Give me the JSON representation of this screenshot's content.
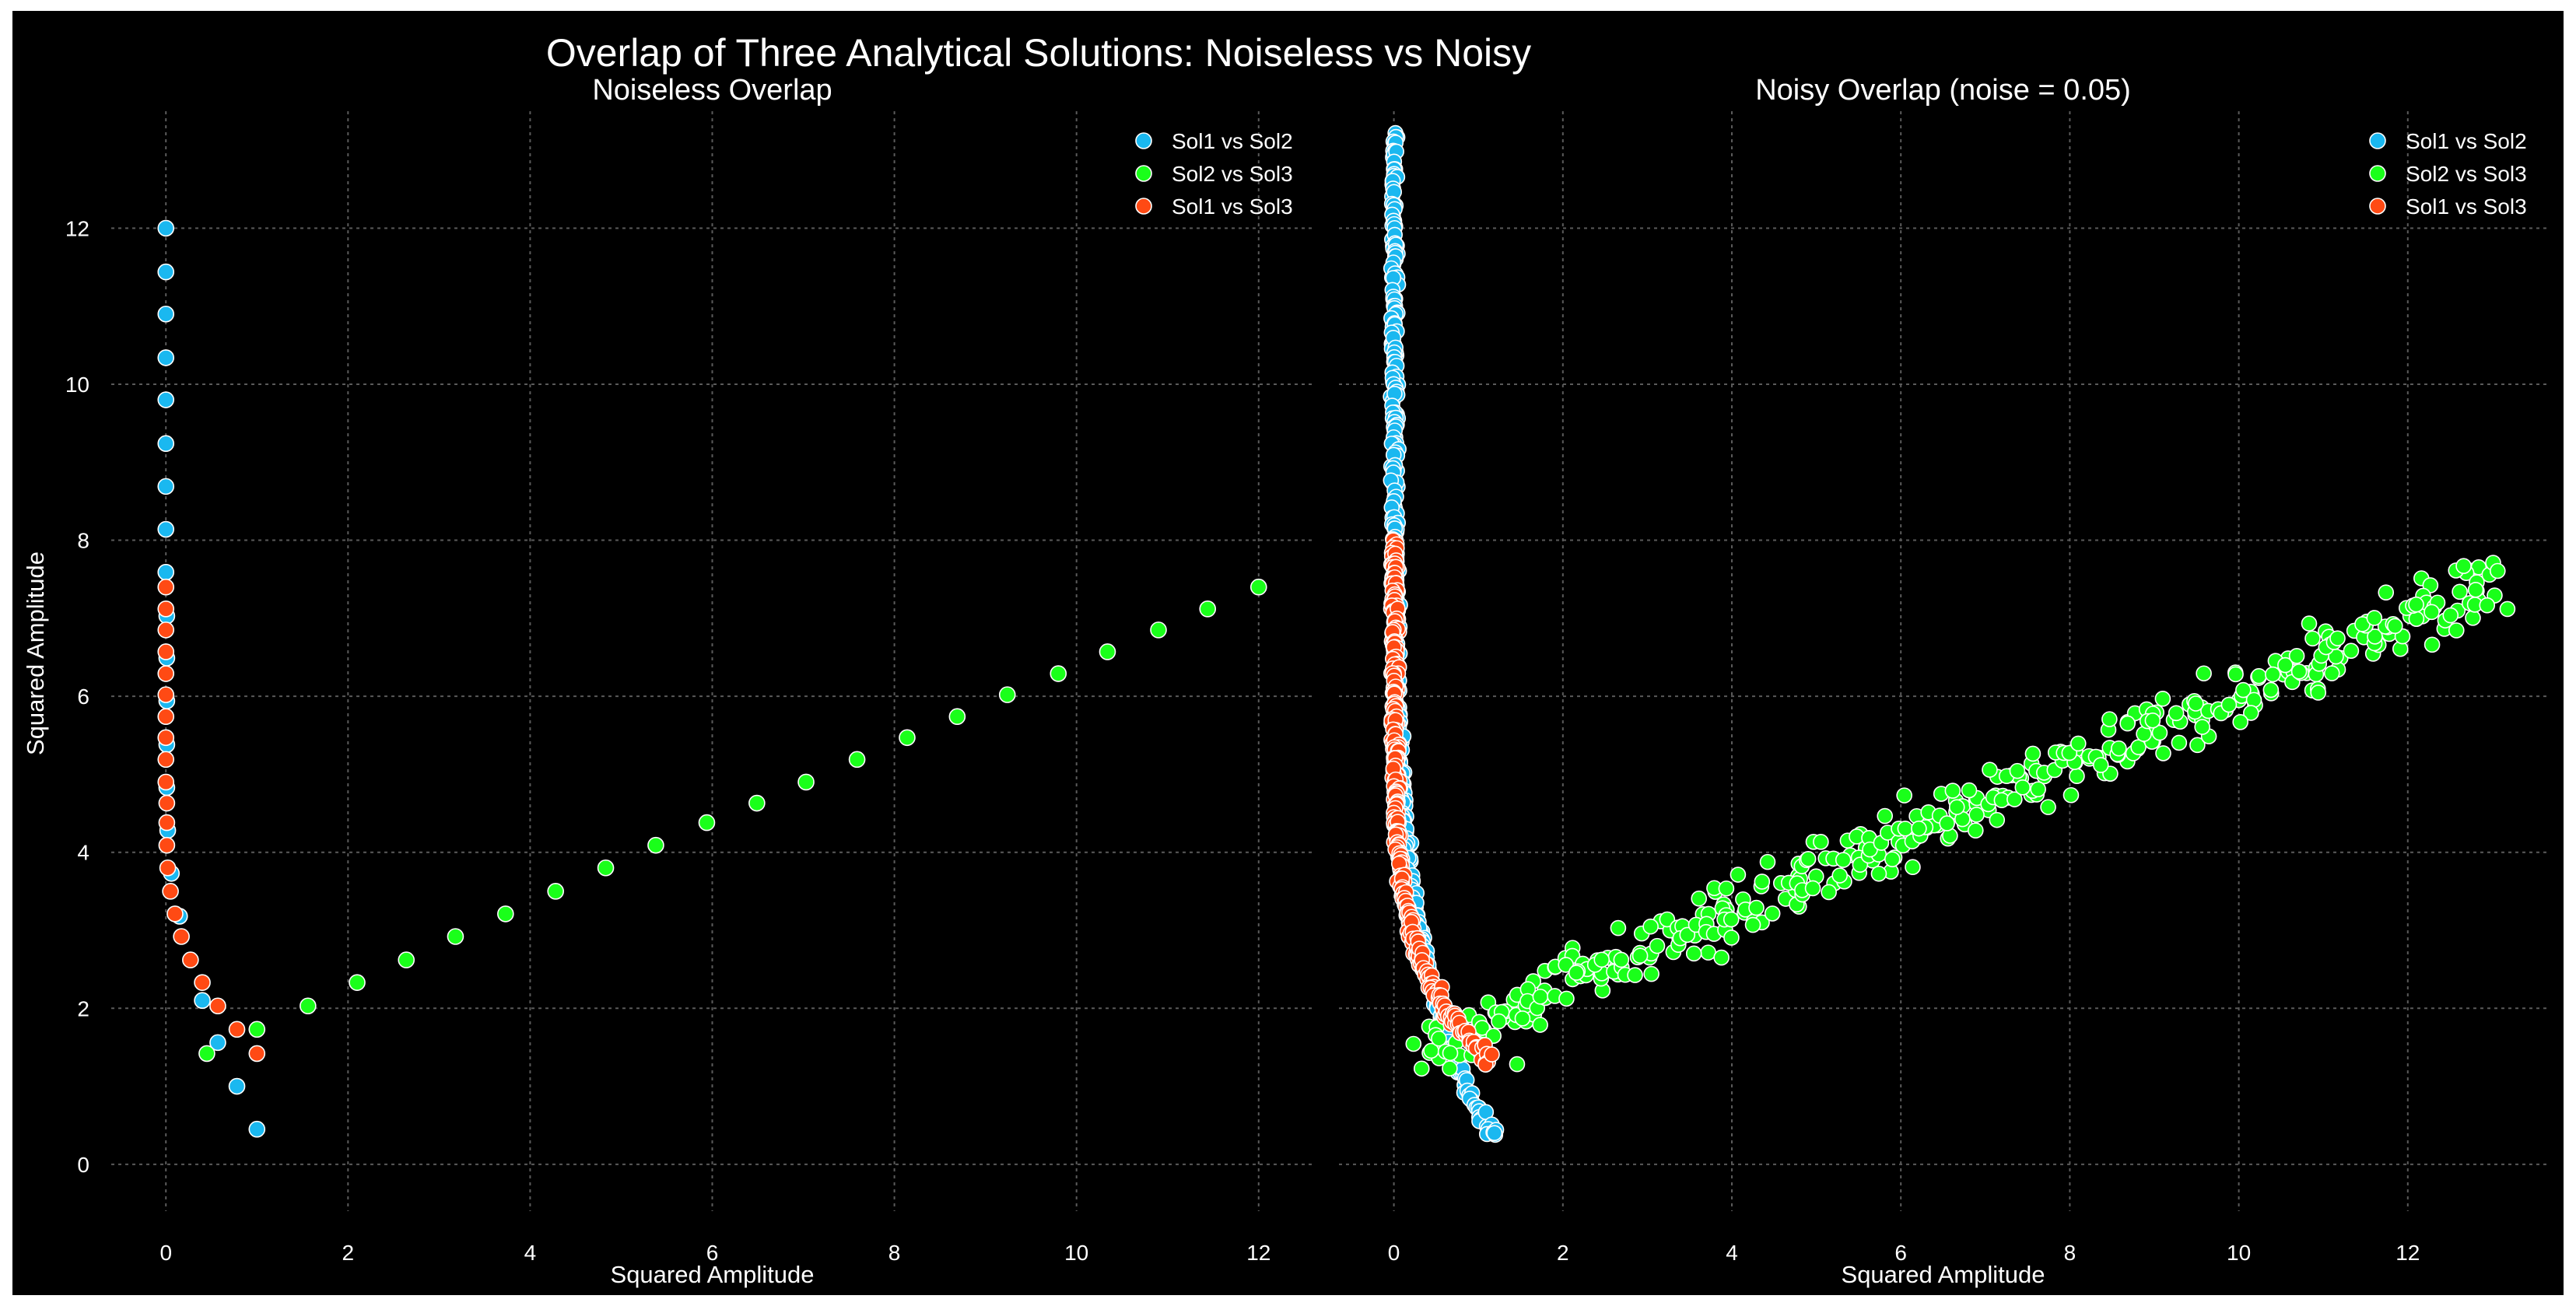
{
  "figure_title": "Overlap of Three Analytical Solutions: Noiseless vs Noisy",
  "colors": {
    "background": "#000000",
    "sol1_vs_sol2": "#1ab8f0",
    "sol2_vs_sol3": "#1aff1a",
    "sol1_vs_sol3": "#ff4a14",
    "marker_edge": "#ffffff",
    "grid": "#5a5a5a"
  },
  "chart_data": [
    {
      "type": "scatter",
      "title": "Noiseless Overlap",
      "xlabel": "Squared Amplitude",
      "ylabel": "Squared Amplitude",
      "xlim": [
        -0.6,
        12.6
      ],
      "ylim": [
        -0.6,
        13.5
      ],
      "xticks": [
        "0",
        "2",
        "4",
        "6",
        "8",
        "10",
        "12"
      ],
      "yticks": [
        "0",
        "2",
        "4",
        "6",
        "8",
        "10",
        "12"
      ],
      "grid": true,
      "legend_location": "top-right",
      "series": [
        {
          "name": "Sol1 vs Sol2",
          "points": [
            [
              0.0,
              12.0
            ],
            [
              0.0,
              11.44
            ],
            [
              0.0,
              10.9
            ],
            [
              0.0,
              10.34
            ],
            [
              0.0,
              9.8
            ],
            [
              0.0,
              9.24
            ],
            [
              0.0,
              8.69
            ],
            [
              0.0,
              8.14
            ],
            [
              0.0,
              7.59
            ],
            [
              0.01,
              7.03
            ],
            [
              0.01,
              6.49
            ],
            [
              0.01,
              5.94
            ],
            [
              0.01,
              5.38
            ],
            [
              0.01,
              4.83
            ],
            [
              0.02,
              4.28
            ],
            [
              0.06,
              3.73
            ],
            [
              0.15,
              3.18
            ],
            [
              0.4,
              2.1
            ],
            [
              0.57,
              1.56
            ],
            [
              0.78,
              1.0
            ],
            [
              1.0,
              0.45
            ]
          ]
        },
        {
          "name": "Sol2 vs Sol3",
          "points": [
            [
              0.45,
              1.42
            ],
            [
              1.0,
              1.73
            ],
            [
              1.56,
              2.03
            ],
            [
              2.1,
              2.33
            ],
            [
              2.64,
              2.62
            ],
            [
              3.18,
              2.92
            ],
            [
              3.73,
              3.21
            ],
            [
              4.28,
              3.5
            ],
            [
              4.83,
              3.8
            ],
            [
              5.38,
              4.09
            ],
            [
              5.94,
              4.38
            ],
            [
              6.49,
              4.63
            ],
            [
              7.03,
              4.9
            ],
            [
              7.59,
              5.19
            ],
            [
              8.14,
              5.47
            ],
            [
              8.69,
              5.74
            ],
            [
              9.24,
              6.02
            ],
            [
              9.8,
              6.29
            ],
            [
              10.34,
              6.57
            ],
            [
              10.9,
              6.85
            ],
            [
              11.44,
              7.12
            ],
            [
              12.0,
              7.4
            ]
          ]
        },
        {
          "name": "Sol1 vs Sol3",
          "points": [
            [
              0.0,
              7.4
            ],
            [
              0.0,
              7.12
            ],
            [
              0.0,
              6.85
            ],
            [
              0.0,
              6.57
            ],
            [
              0.0,
              6.29
            ],
            [
              0.0,
              6.02
            ],
            [
              0.0,
              5.74
            ],
            [
              0.0,
              5.47
            ],
            [
              0.0,
              5.19
            ],
            [
              0.0,
              4.9
            ],
            [
              0.01,
              4.63
            ],
            [
              0.01,
              4.38
            ],
            [
              0.01,
              4.09
            ],
            [
              0.02,
              3.8
            ],
            [
              0.05,
              3.5
            ],
            [
              0.1,
              3.21
            ],
            [
              0.17,
              2.92
            ],
            [
              0.27,
              2.62
            ],
            [
              0.4,
              2.33
            ],
            [
              0.57,
              2.03
            ],
            [
              0.78,
              1.73
            ],
            [
              1.0,
              1.42
            ]
          ]
        }
      ]
    },
    {
      "type": "scatter",
      "title": "Noisy Overlap (noise = 0.05)",
      "xlabel": "Squared Amplitude",
      "xlim": [
        -0.65,
        13.65
      ],
      "ylim": [
        -0.6,
        13.5
      ],
      "xticks": [
        "0",
        "2",
        "4",
        "6",
        "8",
        "10",
        "12"
      ],
      "yticks": [
        "0",
        "2",
        "4",
        "6",
        "8",
        "10",
        "12"
      ],
      "grid": true,
      "legend_location": "top-right",
      "note": "dense point clouds (~500 points per series) that follow the noiseless curves with Gaussian jitter",
      "series": [
        {
          "name": "Sol1 vs Sol2",
          "trend": "x ≈ 0 for y from 13.2 down to 4, then curving out to x ≈ 1.2 at y ≈ 0.3",
          "extent": {
            "x": [
              -0.05,
              1.25
            ],
            "y": [
              0.28,
              13.2
            ]
          }
        },
        {
          "name": "Sol2 vs Sol3",
          "trend": "approximately linear from (0.3, 1.3) to (13.1, 7.3)",
          "extent": {
            "x": [
              0.25,
              13.15
            ],
            "y": [
              1.2,
              8.0
            ]
          }
        },
        {
          "name": "Sol1 vs Sol3",
          "trend": "x ≈ 0 for y from 8.0 down to 3, then curving out to x ≈ 1.15 at y ≈ 1.3",
          "extent": {
            "x": [
              -0.05,
              1.2
            ],
            "y": [
              1.25,
              8.0
            ]
          }
        }
      ]
    }
  ]
}
